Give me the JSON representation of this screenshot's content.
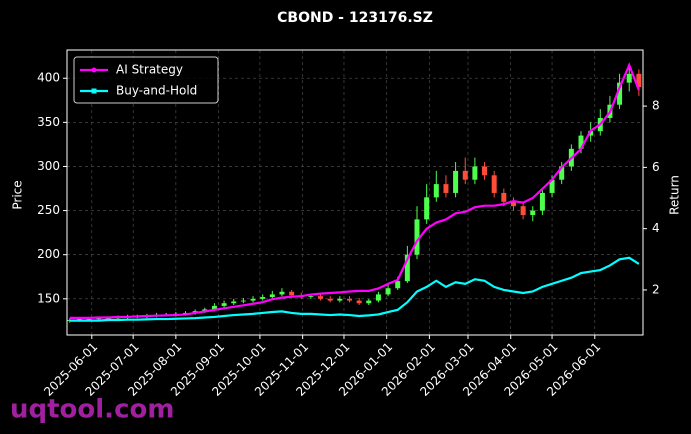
{
  "chart_data": {
    "type": "candlestick",
    "title": "CBOND - 123176.SZ",
    "y_label": "Price",
    "y2_label": "Return",
    "watermark": "uqtool.com",
    "x": [
      "2025-05-16",
      "2025-05-23",
      "2025-05-30",
      "2025-06-06",
      "2025-06-13",
      "2025-06-20",
      "2025-06-27",
      "2025-07-04",
      "2025-07-11",
      "2025-07-18",
      "2025-07-25",
      "2025-08-01",
      "2025-08-08",
      "2025-08-15",
      "2025-08-22",
      "2025-08-29",
      "2025-09-05",
      "2025-09-12",
      "2025-09-19",
      "2025-09-26",
      "2025-10-03",
      "2025-10-10",
      "2025-10-17",
      "2025-10-24",
      "2025-10-31",
      "2025-11-07",
      "2025-11-14",
      "2025-11-21",
      "2025-11-28",
      "2025-12-05",
      "2025-12-12",
      "2025-12-19",
      "2025-12-26",
      "2026-01-02",
      "2026-01-09",
      "2026-01-16",
      "2026-01-23",
      "2026-01-30",
      "2026-02-06",
      "2026-02-13",
      "2026-02-20",
      "2026-02-27",
      "2026-03-06",
      "2026-03-13",
      "2026-03-20",
      "2026-03-27",
      "2026-04-03",
      "2026-04-10",
      "2026-04-17",
      "2026-04-24",
      "2026-05-01",
      "2026-05-08",
      "2026-05-15",
      "2026-05-22",
      "2026-05-29",
      "2026-06-05",
      "2026-06-12",
      "2026-06-19",
      "2026-06-26",
      "2026-07-03"
    ],
    "open": [
      125,
      126,
      127,
      127,
      128,
      128,
      129,
      130,
      130,
      131,
      132,
      132,
      133,
      134,
      136,
      138,
      142,
      145,
      147,
      148,
      150,
      152,
      155,
      158,
      154,
      152,
      153,
      150,
      148,
      150,
      148,
      145,
      148,
      155,
      162,
      170,
      200,
      240,
      265,
      280,
      270,
      295,
      285,
      300,
      290,
      270,
      260,
      255,
      245,
      250,
      270,
      285,
      300,
      320,
      335,
      340,
      355,
      370,
      395,
      405
    ],
    "high": [
      128,
      129,
      129,
      130,
      130,
      131,
      132,
      132,
      133,
      134,
      134,
      135,
      136,
      138,
      140,
      145,
      148,
      150,
      151,
      153,
      155,
      159,
      162,
      160,
      157,
      156,
      155,
      153,
      153,
      153,
      151,
      150,
      158,
      166,
      175,
      210,
      255,
      280,
      295,
      290,
      305,
      310,
      310,
      305,
      295,
      275,
      265,
      260,
      255,
      275,
      290,
      305,
      325,
      340,
      350,
      365,
      380,
      405,
      415,
      410
    ],
    "low": [
      123,
      124,
      125,
      125,
      126,
      126,
      127,
      128,
      128,
      129,
      130,
      130,
      131,
      132,
      134,
      136,
      140,
      143,
      145,
      146,
      148,
      150,
      153,
      151,
      150,
      150,
      148,
      146,
      146,
      146,
      143,
      143,
      146,
      153,
      160,
      168,
      195,
      235,
      260,
      265,
      265,
      280,
      280,
      285,
      265,
      255,
      250,
      240,
      238,
      245,
      265,
      280,
      295,
      315,
      328,
      335,
      350,
      365,
      385,
      380
    ],
    "close": [
      126,
      127,
      127,
      128,
      128,
      129,
      130,
      130,
      131,
      132,
      132,
      133,
      134,
      136,
      138,
      142,
      145,
      147,
      148,
      150,
      152,
      155,
      158,
      154,
      152,
      153,
      150,
      148,
      150,
      148,
      145,
      148,
      155,
      162,
      170,
      200,
      240,
      265,
      280,
      270,
      295,
      285,
      300,
      290,
      270,
      260,
      255,
      245,
      250,
      270,
      285,
      300,
      320,
      335,
      340,
      355,
      370,
      395,
      405,
      390
    ],
    "up_color": "#4dff4d",
    "down_color": "#ff4d3a",
    "series": [
      {
        "name": "AI Strategy",
        "color": "#ff00ff",
        "axis": "y2",
        "values": [
          1.09,
          1.09,
          1.09,
          1.1,
          1.1,
          1.12,
          1.12,
          1.14,
          1.15,
          1.16,
          1.17,
          1.18,
          1.2,
          1.25,
          1.3,
          1.35,
          1.4,
          1.45,
          1.5,
          1.55,
          1.6,
          1.7,
          1.75,
          1.78,
          1.8,
          1.85,
          1.88,
          1.9,
          1.92,
          1.95,
          1.97,
          1.97,
          2.05,
          2.2,
          2.33,
          3.0,
          3.6,
          4.0,
          4.2,
          4.3,
          4.5,
          4.55,
          4.7,
          4.75,
          4.75,
          4.8,
          4.9,
          4.85,
          5.0,
          5.3,
          5.6,
          6.0,
          6.3,
          6.6,
          7.2,
          7.4,
          7.8,
          8.6,
          9.34,
          8.52
        ]
      },
      {
        "name": "Buy-and-Hold",
        "color": "#00ffff",
        "axis": "y2",
        "values": [
          1.0,
          1.0,
          1.0,
          1.0,
          1.02,
          1.02,
          1.03,
          1.03,
          1.04,
          1.05,
          1.05,
          1.06,
          1.07,
          1.08,
          1.1,
          1.12,
          1.15,
          1.18,
          1.2,
          1.22,
          1.25,
          1.28,
          1.3,
          1.25,
          1.22,
          1.22,
          1.2,
          1.18,
          1.2,
          1.18,
          1.15,
          1.17,
          1.2,
          1.28,
          1.35,
          1.6,
          1.95,
          2.1,
          2.3,
          2.1,
          2.25,
          2.2,
          2.35,
          2.3,
          2.1,
          2.0,
          1.95,
          1.9,
          1.95,
          2.1,
          2.2,
          2.3,
          2.4,
          2.55,
          2.6,
          2.65,
          2.8,
          3.0,
          3.05,
          2.85
        ]
      }
    ],
    "xlim": [
      "2025-05-14",
      "2026-07-06"
    ],
    "xticks": [
      "2025-06-01",
      "2025-07-01",
      "2025-08-01",
      "2025-09-01",
      "2025-10-01",
      "2025-11-01",
      "2025-12-01",
      "2026-01-01",
      "2026-02-01",
      "2026-03-01",
      "2026-04-01",
      "2026-05-01",
      "2026-06-01"
    ],
    "ylim": [
      109,
      432
    ],
    "yticks": [
      150,
      200,
      250,
      300,
      350,
      400
    ],
    "y2lim": [
      0.53,
      9.83
    ],
    "y2ticks": [
      2,
      4,
      6,
      8
    ],
    "grid": true,
    "legend": "upper left"
  }
}
